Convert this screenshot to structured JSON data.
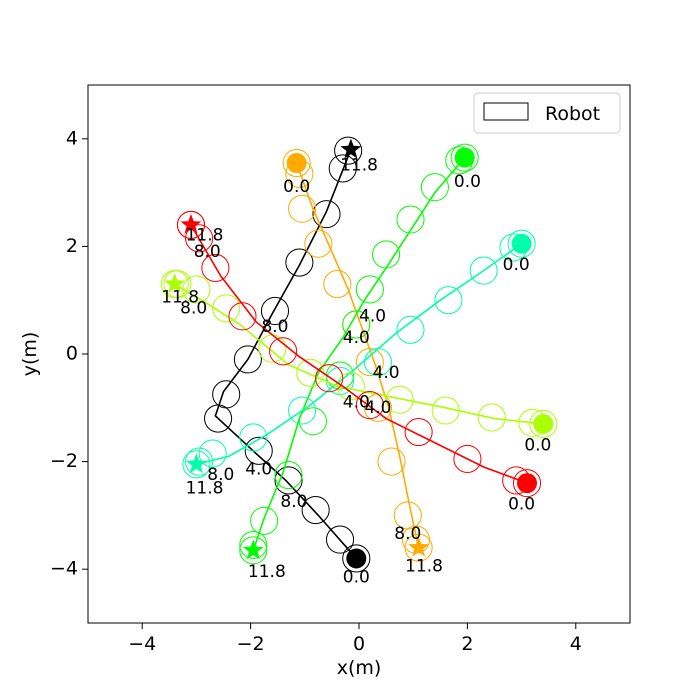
{
  "chart_data": {
    "type": "line",
    "xlabel": "x(m)",
    "ylabel": "y(m)",
    "xlim": [
      -5,
      5
    ],
    "ylim": [
      -5,
      5
    ],
    "xticks": [
      -4,
      -2,
      0,
      2,
      4
    ],
    "yticks": [
      -4,
      -2,
      0,
      2,
      4
    ],
    "xtick_labels": [
      "−4",
      "−2",
      "0",
      "2",
      "4"
    ],
    "ytick_labels": [
      "−4",
      "−2",
      "0",
      "2",
      "4"
    ],
    "grid": false,
    "legend": {
      "placement": "top-right",
      "entries": [
        "Robot"
      ]
    },
    "robot_radius": 0.25,
    "series": [
      {
        "color": "#000000",
        "start": [
          -0.05,
          -3.8
        ],
        "goal": [
          -0.15,
          3.8
        ],
        "path": [
          [
            -0.05,
            -3.8
          ],
          [
            -0.75,
            -3.0
          ],
          [
            -1.35,
            -2.35
          ],
          [
            -1.9,
            -1.85
          ],
          [
            -2.65,
            -1.15
          ],
          [
            -2.5,
            -0.7
          ],
          [
            -2.05,
            -0.1
          ],
          [
            -1.6,
            0.75
          ],
          [
            -1.1,
            1.65
          ],
          [
            -0.6,
            2.65
          ],
          [
            -0.15,
            3.8
          ]
        ],
        "circles": [
          [
            -0.05,
            -3.8
          ],
          [
            -0.35,
            -3.45
          ],
          [
            -0.8,
            -2.9
          ],
          [
            -1.3,
            -2.35
          ],
          [
            -1.85,
            -1.8
          ],
          [
            -2.6,
            -1.2
          ],
          [
            -2.45,
            -0.75
          ],
          [
            -2.05,
            -0.1
          ],
          [
            -1.55,
            0.8
          ],
          [
            -1.1,
            1.7
          ],
          [
            -0.6,
            2.6
          ],
          [
            -0.3,
            3.45
          ],
          [
            -0.2,
            3.78
          ]
        ],
        "time_labels": [
          {
            "text": "0.0",
            "at": [
              -0.05,
              -4.15
            ]
          },
          {
            "text": "4.0",
            "at": [
              -1.85,
              -2.15
            ]
          },
          {
            "text": "8.0",
            "at": [
              -1.55,
              0.5
            ]
          },
          {
            "text": "11.8",
            "at": [
              0.0,
              3.5
            ]
          }
        ]
      },
      {
        "color": "#ffaa00",
        "start": [
          -1.15,
          3.55
        ],
        "goal": [
          1.1,
          -3.6
        ],
        "path": [
          [
            -1.15,
            3.55
          ],
          [
            -0.85,
            2.7
          ],
          [
            -0.5,
            1.9
          ],
          [
            -0.2,
            1.2
          ],
          [
            0.05,
            0.5
          ],
          [
            0.3,
            -0.2
          ],
          [
            0.55,
            -1.0
          ],
          [
            0.75,
            -1.9
          ],
          [
            0.95,
            -2.9
          ],
          [
            1.1,
            -3.6
          ]
        ],
        "circles": [
          [
            -1.15,
            3.55
          ],
          [
            -1.1,
            3.35
          ],
          [
            -1.05,
            2.7
          ],
          [
            -0.75,
            2.05
          ],
          [
            -0.4,
            1.3
          ],
          [
            -0.05,
            0.55
          ],
          [
            0.2,
            -0.15
          ],
          [
            0.35,
            -1.0
          ],
          [
            0.6,
            -2.0
          ],
          [
            0.9,
            -3.0
          ],
          [
            1.05,
            -3.45
          ],
          [
            1.1,
            -3.6
          ]
        ],
        "time_labels": [
          {
            "text": "0.0",
            "at": [
              -1.15,
              3.1
            ]
          },
          {
            "text": "4.0",
            "at": [
              -0.05,
              0.3
            ]
          },
          {
            "text": "8.0",
            "at": [
              0.9,
              -3.35
            ]
          },
          {
            "text": "11.8",
            "at": [
              1.2,
              -3.95
            ]
          }
        ]
      },
      {
        "color": "#00ff00",
        "start": [
          1.95,
          3.65
        ],
        "goal": [
          -1.95,
          -3.65
        ],
        "path": [
          [
            1.95,
            3.65
          ],
          [
            1.4,
            3.0
          ],
          [
            0.95,
            2.3
          ],
          [
            0.5,
            1.6
          ],
          [
            0.1,
            1.0
          ],
          [
            -0.3,
            0.3
          ],
          [
            -0.75,
            -0.35
          ],
          [
            -1.1,
            -1.2
          ],
          [
            -1.4,
            -2.2
          ],
          [
            -1.75,
            -3.05
          ],
          [
            -1.95,
            -3.65
          ]
        ],
        "circles": [
          [
            1.95,
            3.65
          ],
          [
            1.85,
            3.6
          ],
          [
            1.4,
            3.1
          ],
          [
            0.95,
            2.5
          ],
          [
            0.5,
            1.85
          ],
          [
            0.2,
            1.2
          ],
          [
            -0.05,
            0.55
          ],
          [
            -0.35,
            -0.4
          ],
          [
            -0.85,
            -1.25
          ],
          [
            -1.3,
            -2.25
          ],
          [
            -1.75,
            -3.1
          ],
          [
            -1.95,
            -3.55
          ],
          [
            -1.95,
            -3.65
          ]
        ],
        "time_labels": [
          {
            "text": "0.0",
            "at": [
              2.0,
              3.2
            ]
          },
          {
            "text": "4.0",
            "at": [
              0.25,
              0.7
            ]
          },
          {
            "text": "8.0",
            "at": [
              -1.2,
              -2.75
            ]
          },
          {
            "text": "11.8",
            "at": [
              -1.7,
              -4.05
            ]
          }
        ]
      },
      {
        "color": "#00ffaa",
        "start": [
          3.0,
          2.05
        ],
        "goal": [
          -3.0,
          -2.05
        ],
        "path": [
          [
            3.0,
            2.05
          ],
          [
            2.3,
            1.55
          ],
          [
            1.5,
            1.0
          ],
          [
            0.7,
            0.4
          ],
          [
            -0.1,
            -0.3
          ],
          [
            -0.9,
            -0.95
          ],
          [
            -1.7,
            -1.5
          ],
          [
            -2.4,
            -1.9
          ],
          [
            -3.0,
            -2.05
          ]
        ],
        "circles": [
          [
            3.0,
            2.05
          ],
          [
            2.85,
            1.98
          ],
          [
            2.3,
            1.55
          ],
          [
            1.65,
            1.0
          ],
          [
            0.95,
            0.45
          ],
          [
            0.35,
            -0.15
          ],
          [
            -0.35,
            -0.5
          ],
          [
            -1.05,
            -1.05
          ],
          [
            -1.95,
            -1.55
          ],
          [
            -2.7,
            -1.85
          ],
          [
            -2.95,
            -2.0
          ],
          [
            -3.0,
            -2.05
          ]
        ],
        "time_labels": [
          {
            "text": "0.0",
            "at": [
              2.9,
              1.65
            ]
          },
          {
            "text": "4.0",
            "at": [
              0.5,
              -0.35
            ]
          },
          {
            "text": "8.0",
            "at": [
              -2.55,
              -2.25
            ]
          },
          {
            "text": "11.8",
            "at": [
              -2.85,
              -2.5
            ]
          }
        ]
      },
      {
        "color": "#aaff00",
        "start": [
          3.4,
          -1.3
        ],
        "goal": [
          -3.4,
          1.3
        ],
        "path": [
          [
            3.4,
            -1.3
          ],
          [
            2.5,
            -1.2
          ],
          [
            1.6,
            -1.0
          ],
          [
            0.6,
            -0.8
          ],
          [
            -0.4,
            -0.6
          ],
          [
            -1.3,
            -0.2
          ],
          [
            -2.2,
            0.55
          ],
          [
            -2.9,
            1.0
          ],
          [
            -3.4,
            1.3
          ]
        ],
        "circles": [
          [
            3.4,
            -1.3
          ],
          [
            3.2,
            -1.28
          ],
          [
            2.45,
            -1.18
          ],
          [
            1.6,
            -1.05
          ],
          [
            0.75,
            -0.85
          ],
          [
            -0.15,
            -0.6
          ],
          [
            -0.9,
            -0.35
          ],
          [
            -1.6,
            0.1
          ],
          [
            -2.45,
            0.85
          ],
          [
            -3.0,
            1.2
          ],
          [
            -3.35,
            1.3
          ],
          [
            -3.4,
            1.3
          ]
        ],
        "time_labels": [
          {
            "text": "0.0",
            "at": [
              3.3,
              -1.7
            ]
          },
          {
            "text": "4.0",
            "at": [
              -0.05,
              -0.9
            ]
          },
          {
            "text": "8.0",
            "at": [
              -3.05,
              0.85
            ]
          },
          {
            "text": "11.8",
            "at": [
              -3.3,
              1.05
            ]
          }
        ]
      },
      {
        "color": "#ff0000",
        "start": [
          3.1,
          -2.4
        ],
        "goal": [
          -3.1,
          2.4
        ],
        "path": [
          [
            3.1,
            -2.4
          ],
          [
            2.3,
            -2.1
          ],
          [
            1.4,
            -1.65
          ],
          [
            0.5,
            -1.2
          ],
          [
            -0.3,
            -0.6
          ],
          [
            -1.1,
            -0.05
          ],
          [
            -1.9,
            0.6
          ],
          [
            -2.55,
            1.45
          ],
          [
            -2.9,
            2.05
          ],
          [
            -3.1,
            2.4
          ]
        ],
        "circles": [
          [
            3.1,
            -2.4
          ],
          [
            2.9,
            -2.35
          ],
          [
            2.0,
            -1.95
          ],
          [
            1.1,
            -1.45
          ],
          [
            0.2,
            -0.95
          ],
          [
            -0.55,
            -0.45
          ],
          [
            -1.4,
            0.05
          ],
          [
            -2.15,
            0.7
          ],
          [
            -2.65,
            1.6
          ],
          [
            -2.95,
            2.15
          ],
          [
            -3.1,
            2.4
          ],
          [
            -3.1,
            2.4
          ]
        ],
        "time_labels": [
          {
            "text": "0.0",
            "at": [
              3.0,
              -2.8
            ]
          },
          {
            "text": "4.0",
            "at": [
              0.35,
              -1.0
            ]
          },
          {
            "text": "8.0",
            "at": [
              -2.8,
              1.9
            ]
          },
          {
            "text": "11.8",
            "at": [
              -2.85,
              2.2
            ]
          }
        ]
      }
    ]
  }
}
